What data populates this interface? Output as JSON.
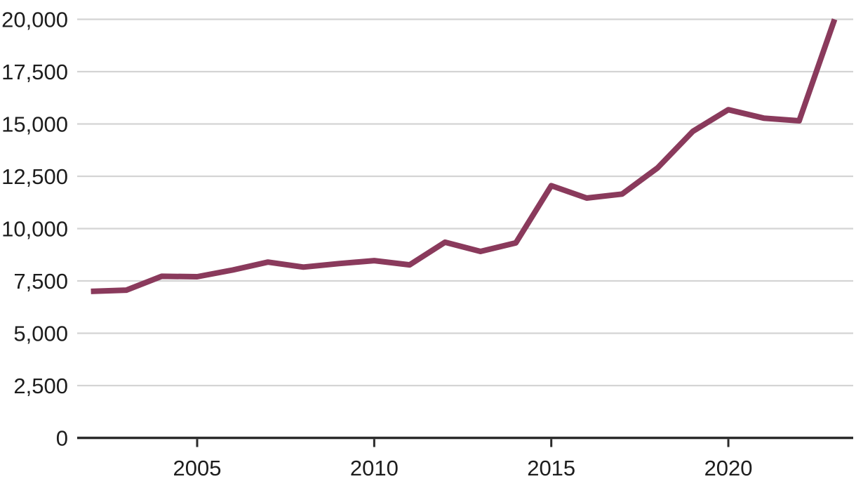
{
  "chart": {
    "background": "#ffffff",
    "line_color": "#8a3a5c",
    "grid_color": "#d4d4d4",
    "axis_color": "#2b2b2b",
    "label_color": "#1d1d1d"
  },
  "chart_data": {
    "type": "line",
    "title": "",
    "xlabel": "",
    "ylabel": "",
    "x": [
      2002,
      2003,
      2004,
      2005,
      2006,
      2007,
      2008,
      2009,
      2010,
      2011,
      2012,
      2013,
      2014,
      2015,
      2016,
      2017,
      2018,
      2019,
      2020,
      2021,
      2022,
      2023
    ],
    "values": [
      7000,
      7060,
      7720,
      7700,
      8020,
      8400,
      8160,
      8330,
      8470,
      8270,
      9350,
      8910,
      9320,
      12050,
      11460,
      11650,
      12900,
      14650,
      15680,
      15280,
      15150,
      20000
    ],
    "ylim": [
      0,
      20000
    ],
    "yticks": [
      {
        "value": 0,
        "label": "0"
      },
      {
        "value": 2500,
        "label": "2,500"
      },
      {
        "value": 5000,
        "label": "5,000"
      },
      {
        "value": 7500,
        "label": "7,500"
      },
      {
        "value": 10000,
        "label": "10,000"
      },
      {
        "value": 12500,
        "label": "12,500"
      },
      {
        "value": 15000,
        "label": "15,000"
      },
      {
        "value": 17500,
        "label": "17,500"
      },
      {
        "value": 20000,
        "label": "20,000"
      }
    ],
    "xticks": [
      {
        "value": 2005,
        "label": "2005"
      },
      {
        "value": 2010,
        "label": "2010"
      },
      {
        "value": 2015,
        "label": "2015"
      },
      {
        "value": 2020,
        "label": "2020"
      }
    ],
    "grid": true,
    "legend": "none"
  }
}
